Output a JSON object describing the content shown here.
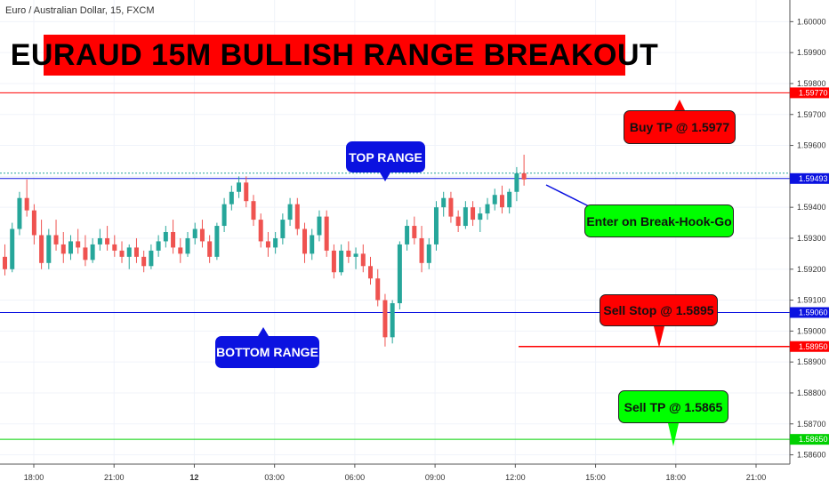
{
  "header": {
    "symbol_title": "Euro / Australian Dollar, 15, FXCM",
    "headline": "EURAUD 15M BULLISH RANGE BREAKOUT"
  },
  "annotations": {
    "top_range": "TOP RANGE",
    "bottom_range": "BOTTOM RANGE",
    "buy_tp": "Buy TP @ 1.5977",
    "enter": "Enter on Break-Hook-Go",
    "sell_stop": "Sell Stop @ 1.5895",
    "sell_tp": "Sell TP @ 1.5865"
  },
  "colors": {
    "bull": "#26a69a",
    "bear": "#ef5350",
    "range_line": "#0b12e0",
    "buy_tp_line": "#ff0000",
    "sell_stop_line": "#ff0000",
    "sell_tp_line": "#00d000"
  },
  "chart_data": {
    "type": "candlestick",
    "y_ticks": [
      "1.60000",
      "1.59900",
      "1.59800",
      "1.59700",
      "1.59600",
      "1.59500",
      "1.59400",
      "1.59300",
      "1.59200",
      "1.59100",
      "1.59000",
      "1.58900",
      "1.58800",
      "1.58700",
      "1.58600"
    ],
    "ylim": [
      1.5857,
      1.6007
    ],
    "x_ticks": [
      "18:00",
      "21:00",
      "12",
      "03:00",
      "06:00",
      "09:00",
      "12:00",
      "15:00",
      "18:00",
      "21:00"
    ],
    "price_tags": [
      {
        "label": "1.59770",
        "value": 1.5977,
        "color": "#ff0000"
      },
      {
        "label": "1.59493",
        "value": 1.59493,
        "color": "#0b12e0"
      },
      {
        "label": "1.59060",
        "value": 1.5906,
        "color": "#0b12e0"
      },
      {
        "label": "1.58950",
        "value": 1.5895,
        "color": "#ff0000"
      },
      {
        "label": "1.58650",
        "value": 1.5865,
        "color": "#00d000"
      }
    ],
    "levels": {
      "buy_tp": 1.5977,
      "top_range": 1.59493,
      "bottom_range": 1.5906,
      "sell_stop": 1.5895,
      "sell_tp": 1.5865
    },
    "candles": [
      [
        1.5924,
        1.5928,
        1.5918,
        1.592
      ],
      [
        1.592,
        1.5935,
        1.5919,
        1.5933
      ],
      [
        1.5933,
        1.5945,
        1.5931,
        1.5943
      ],
      [
        1.5943,
        1.5949,
        1.5937,
        1.5939
      ],
      [
        1.5939,
        1.5941,
        1.5928,
        1.5931
      ],
      [
        1.5931,
        1.5936,
        1.592,
        1.5922
      ],
      [
        1.5922,
        1.5933,
        1.592,
        1.5931
      ],
      [
        1.5931,
        1.5936,
        1.5926,
        1.5928
      ],
      [
        1.5928,
        1.5932,
        1.5922,
        1.5925
      ],
      [
        1.5925,
        1.5931,
        1.5923,
        1.5929
      ],
      [
        1.5929,
        1.5933,
        1.5925,
        1.5927
      ],
      [
        1.5927,
        1.5931,
        1.5921,
        1.5923
      ],
      [
        1.5923,
        1.593,
        1.5922,
        1.5928
      ],
      [
        1.5928,
        1.5933,
        1.5926,
        1.593
      ],
      [
        1.593,
        1.5934,
        1.5926,
        1.5928
      ],
      [
        1.5928,
        1.5931,
        1.5924,
        1.5926
      ],
      [
        1.5926,
        1.5929,
        1.5922,
        1.5924
      ],
      [
        1.5924,
        1.5928,
        1.592,
        1.5927
      ],
      [
        1.5927,
        1.593,
        1.5922,
        1.5924
      ],
      [
        1.5924,
        1.5926,
        1.5919,
        1.5921
      ],
      [
        1.5921,
        1.5928,
        1.592,
        1.5926
      ],
      [
        1.5926,
        1.5931,
        1.5924,
        1.5929
      ],
      [
        1.5929,
        1.5934,
        1.5927,
        1.5932
      ],
      [
        1.5932,
        1.5936,
        1.5925,
        1.5927
      ],
      [
        1.5927,
        1.593,
        1.5922,
        1.5925
      ],
      [
        1.5925,
        1.5932,
        1.5924,
        1.593
      ],
      [
        1.593,
        1.5935,
        1.5928,
        1.5933
      ],
      [
        1.5933,
        1.5936,
        1.5927,
        1.5929
      ],
      [
        1.5929,
        1.5931,
        1.5922,
        1.5924
      ],
      [
        1.5924,
        1.5935,
        1.5923,
        1.5934
      ],
      [
        1.5934,
        1.5943,
        1.5932,
        1.5941
      ],
      [
        1.5941,
        1.5947,
        1.5939,
        1.5945
      ],
      [
        1.5945,
        1.595,
        1.5943,
        1.5948
      ],
      [
        1.5948,
        1.595,
        1.594,
        1.5942
      ],
      [
        1.5942,
        1.5944,
        1.5934,
        1.5936
      ],
      [
        1.5936,
        1.5938,
        1.5927,
        1.5929
      ],
      [
        1.5929,
        1.5932,
        1.5924,
        1.5927
      ],
      [
        1.5927,
        1.5932,
        1.5925,
        1.593
      ],
      [
        1.593,
        1.5938,
        1.5928,
        1.5936
      ],
      [
        1.5936,
        1.5943,
        1.5934,
        1.5941
      ],
      [
        1.5941,
        1.5943,
        1.5931,
        1.5933
      ],
      [
        1.5933,
        1.5935,
        1.5922,
        1.5925
      ],
      [
        1.5925,
        1.5933,
        1.5923,
        1.5931
      ],
      [
        1.5931,
        1.5939,
        1.5929,
        1.5937
      ],
      [
        1.5937,
        1.5939,
        1.5924,
        1.5926
      ],
      [
        1.5926,
        1.5928,
        1.5917,
        1.5919
      ],
      [
        1.5919,
        1.5928,
        1.5918,
        1.5926
      ],
      [
        1.5926,
        1.5929,
        1.5922,
        1.5924
      ],
      [
        1.5924,
        1.5927,
        1.592,
        1.5925
      ],
      [
        1.5925,
        1.5928,
        1.5919,
        1.5921
      ],
      [
        1.5921,
        1.5924,
        1.5915,
        1.5917
      ],
      [
        1.5917,
        1.592,
        1.5908,
        1.591
      ],
      [
        1.591,
        1.5912,
        1.5895,
        1.5898
      ],
      [
        1.5898,
        1.591,
        1.5896,
        1.5909
      ],
      [
        1.5909,
        1.5929,
        1.5907,
        1.5928
      ],
      [
        1.5928,
        1.5936,
        1.5926,
        1.5934
      ],
      [
        1.5934,
        1.5937,
        1.5928,
        1.593
      ],
      [
        1.593,
        1.5934,
        1.5919,
        1.5922
      ],
      [
        1.5922,
        1.593,
        1.592,
        1.5928
      ],
      [
        1.5928,
        1.5942,
        1.5926,
        1.594
      ],
      [
        1.594,
        1.5945,
        1.5937,
        1.5943
      ],
      [
        1.5943,
        1.5945,
        1.5935,
        1.5937
      ],
      [
        1.5937,
        1.5939,
        1.5932,
        1.5934
      ],
      [
        1.5934,
        1.5942,
        1.5933,
        1.594
      ],
      [
        1.594,
        1.5942,
        1.5934,
        1.5936
      ],
      [
        1.5936,
        1.594,
        1.5932,
        1.5938
      ],
      [
        1.5938,
        1.5943,
        1.5936,
        1.5941
      ],
      [
        1.5941,
        1.5946,
        1.5939,
        1.5944
      ],
      [
        1.5944,
        1.5947,
        1.5938,
        1.594
      ],
      [
        1.594,
        1.5946,
        1.5938,
        1.5945
      ],
      [
        1.5945,
        1.5953,
        1.5942,
        1.5951
      ],
      [
        1.5951,
        1.5957,
        1.5947,
        1.5949
      ]
    ]
  }
}
